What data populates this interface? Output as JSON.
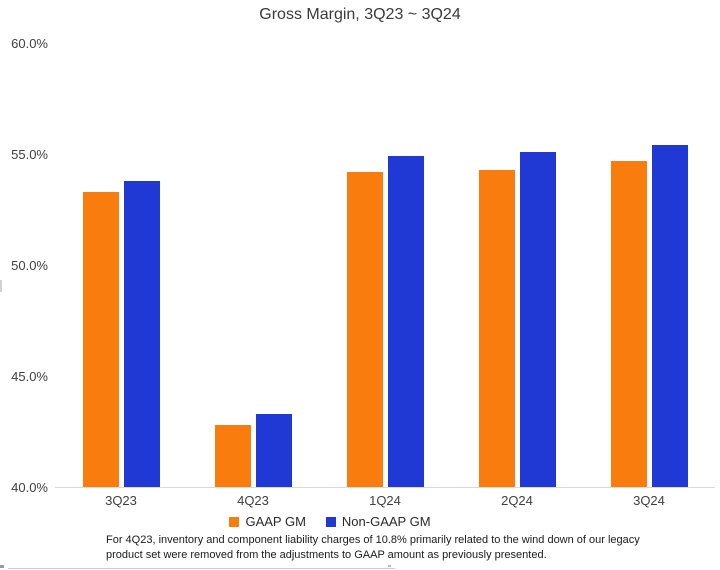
{
  "title": "Gross Margin, 3Q23 ~ 3Q24",
  "colors": {
    "gaap_orange": "#F97D0E",
    "non_gaap_blue": "#2139D4",
    "axis_line": "#d9d9d9"
  },
  "chart_data": {
    "type": "bar",
    "title": "Gross Margin, 3Q23 ~ 3Q24",
    "categories": [
      "3Q23",
      "4Q23",
      "1Q24",
      "2Q24",
      "3Q24"
    ],
    "series": [
      {
        "name": "GAAP GM",
        "color": "#F97D0E",
        "values": [
          53.3,
          42.8,
          54.2,
          54.3,
          54.7
        ]
      },
      {
        "name": "Non-GAAP GM",
        "color": "#2139D4",
        "values": [
          53.8,
          43.3,
          54.9,
          55.1,
          55.4
        ]
      }
    ],
    "xlabel": "",
    "ylabel": "",
    "ylim": [
      40,
      60
    ],
    "ytick_labels": [
      "60.0%",
      "55.0%",
      "50.0%",
      "45.0%",
      "40.0%"
    ],
    "grid": false,
    "legend_position": "bottom"
  },
  "legend": [
    {
      "label": "GAAP GM",
      "color": "#F97D0E"
    },
    {
      "label": "Non-GAAP GM",
      "color": "#2139D4"
    }
  ],
  "footnote": {
    "line1": "For 4Q23, inventory and component liability charges of 10.8% primarily related to the wind down of our legacy",
    "line2": "product set were removed from the adjustments to GAAP amount as previously presented."
  }
}
